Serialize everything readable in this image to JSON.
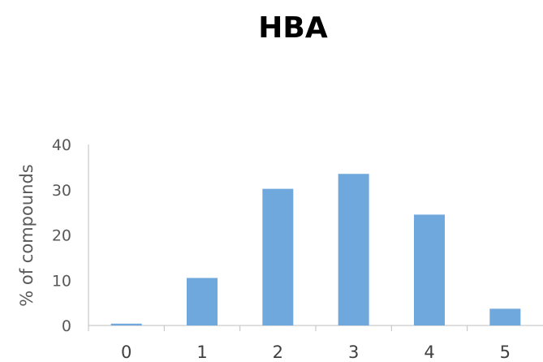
{
  "chart_data": {
    "type": "bar",
    "title": "HBA",
    "xlabel": "",
    "ylabel": "% of compounds",
    "categories": [
      "0",
      "1",
      "2",
      "3",
      "4",
      "5"
    ],
    "values": [
      0.4,
      10.5,
      30.2,
      33.5,
      24.5,
      3.7
    ],
    "ylim": [
      0,
      40
    ],
    "yticks": [
      0,
      10,
      20,
      30,
      40
    ],
    "grid": false,
    "legend": "none",
    "colors": {
      "bar": "#6fa8dc",
      "axis": "#bfbfbf",
      "tick_text": "#595959",
      "title_text": "#000000"
    }
  }
}
